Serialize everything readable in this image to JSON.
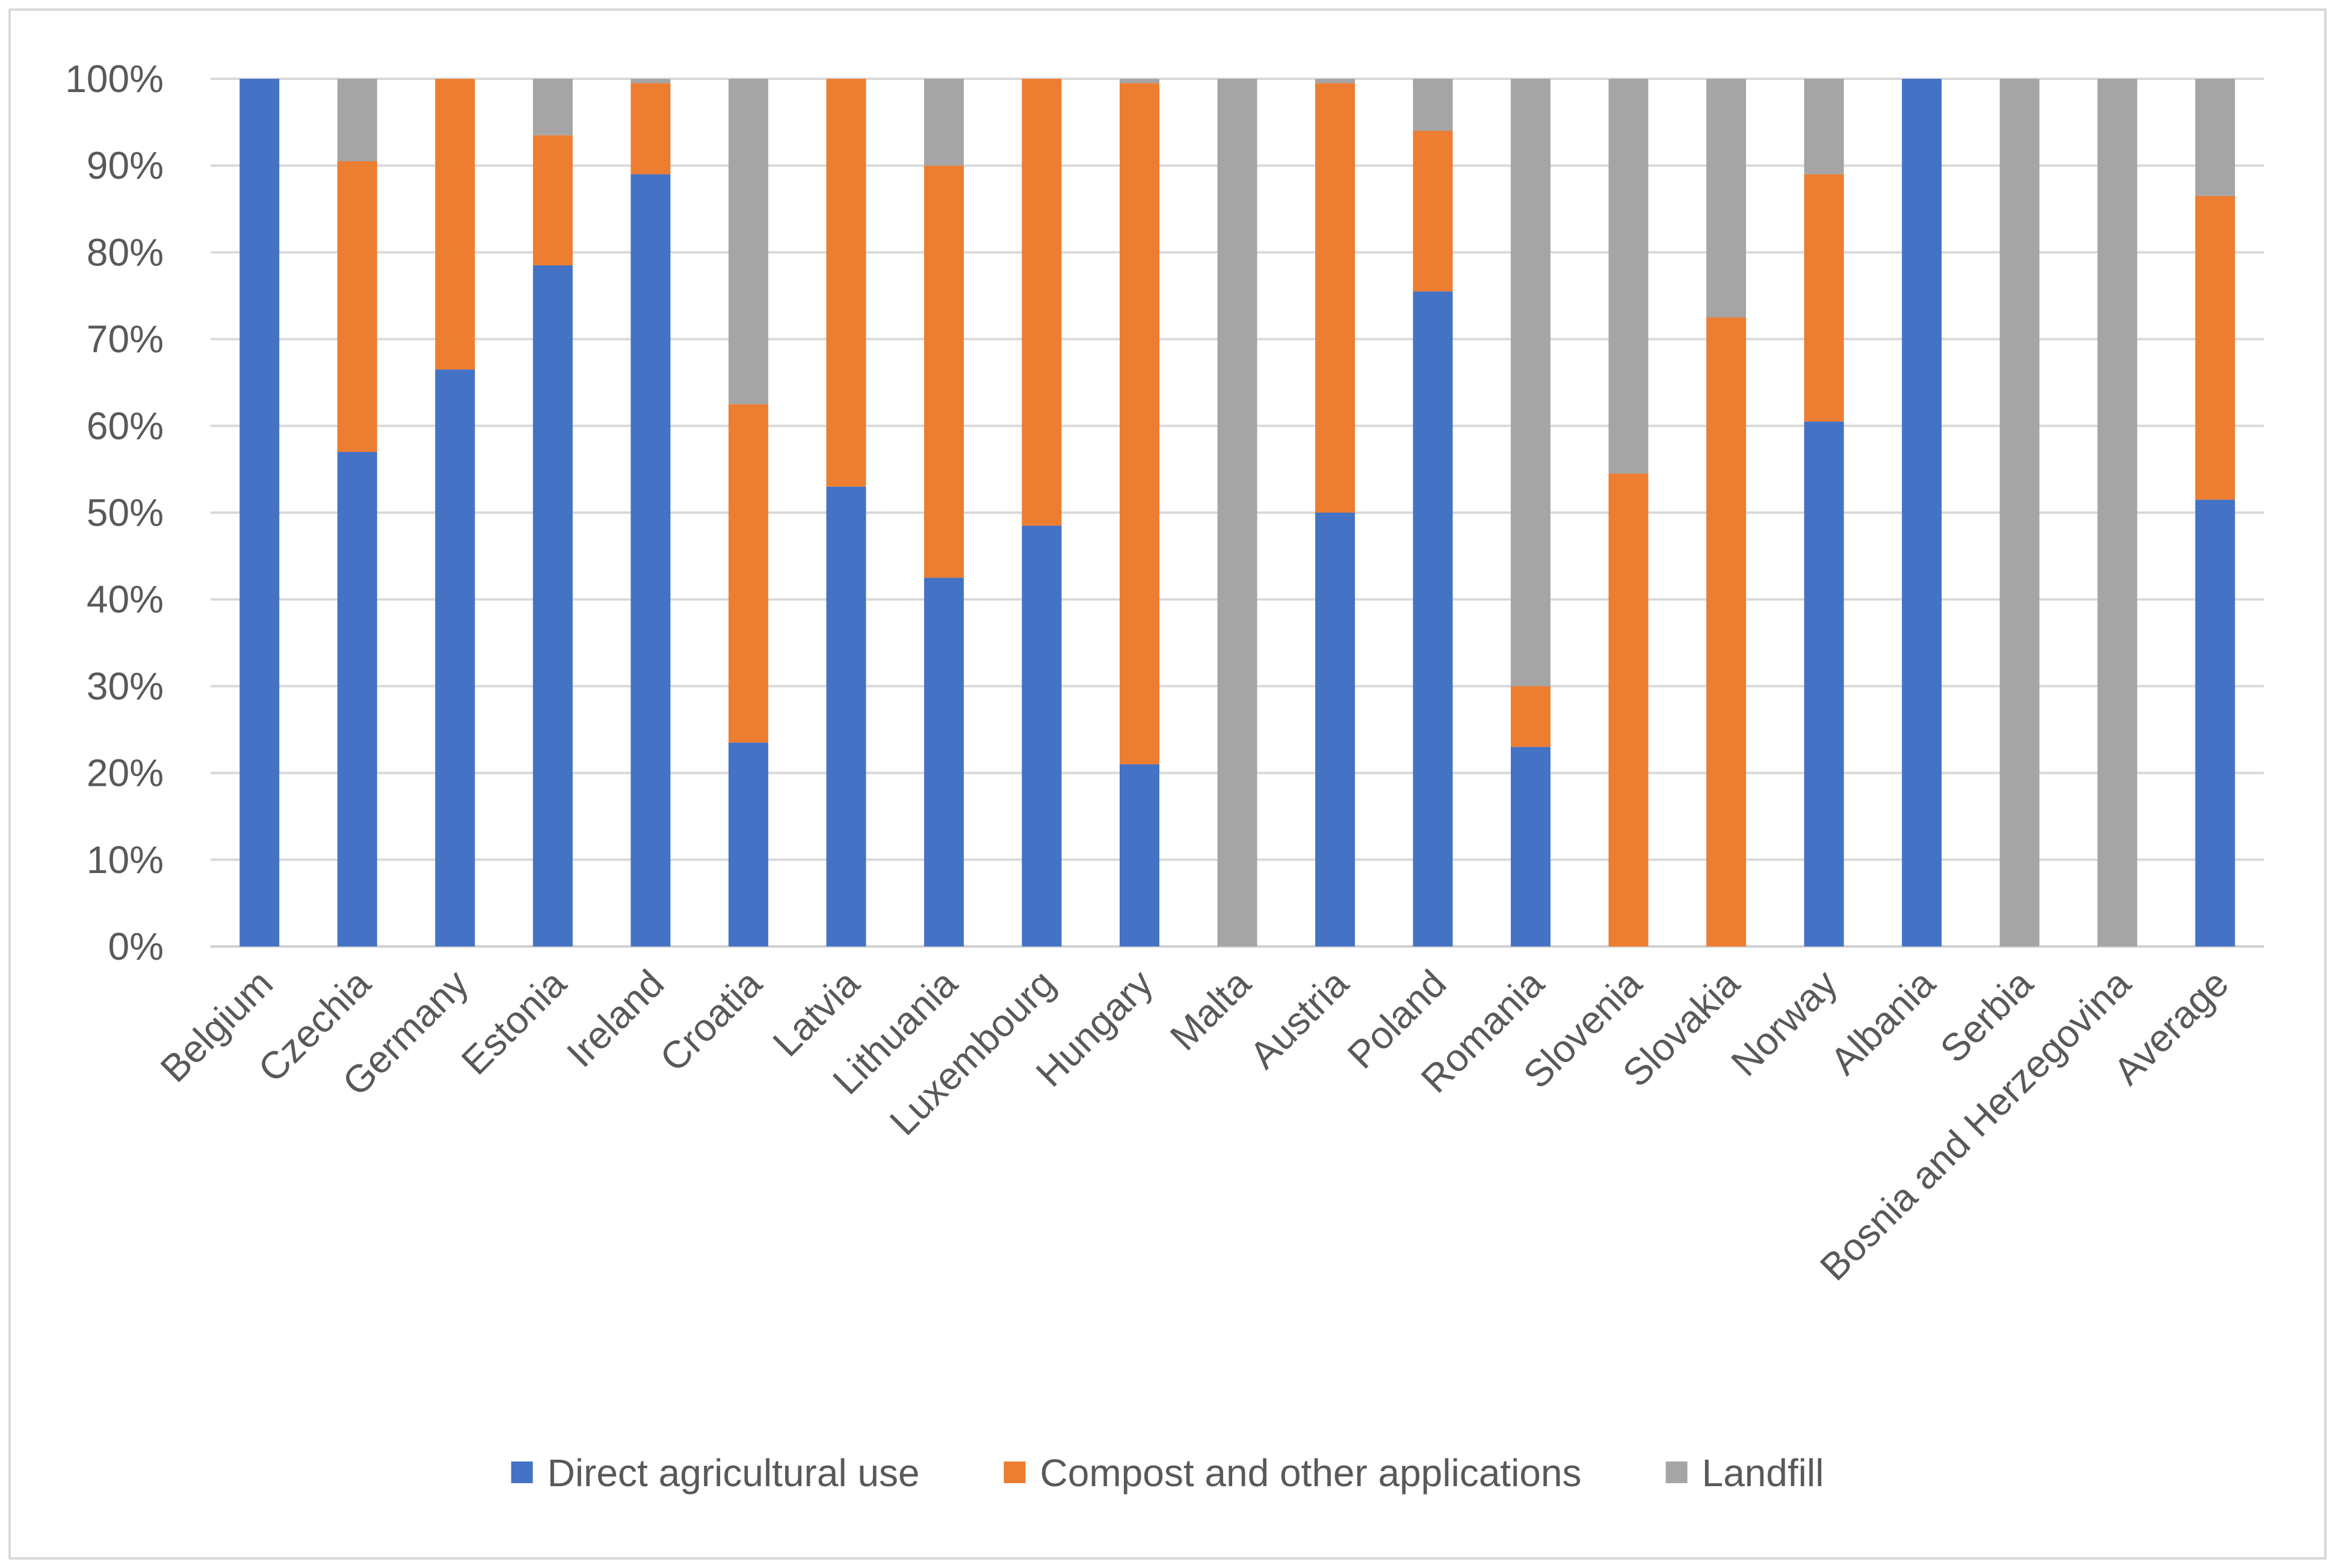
{
  "chart_data": {
    "type": "bar",
    "stacked": true,
    "percent": true,
    "title": "",
    "xlabel": "",
    "ylabel": "",
    "ylim": [
      0,
      100
    ],
    "yticks": [
      "0%",
      "10%",
      "20%",
      "30%",
      "40%",
      "50%",
      "60%",
      "70%",
      "80%",
      "90%",
      "100%"
    ],
    "grid": true,
    "legend_position": "bottom",
    "categories": [
      "Belgium",
      "Czechia",
      "Germany",
      "Estonia",
      "Ireland",
      "Croatia",
      "Latvia",
      "Lithuania",
      "Luxembourg",
      "Hungary",
      "Malta",
      "Austria",
      "Poland",
      "Romania",
      "Slovenia",
      "Slovakia",
      "Norway",
      "Albania",
      "Serbia",
      "Bosnia and Herzegovina",
      "Average"
    ],
    "series": [
      {
        "name": "Direct agricultural use",
        "color": "#4472c4",
        "values": [
          100,
          57,
          66.5,
          78.5,
          89,
          23.5,
          53,
          42.5,
          48.5,
          21,
          0,
          50,
          75.5,
          23,
          0,
          0,
          60.5,
          100,
          0,
          0,
          51.5
        ]
      },
      {
        "name": "Compost and other applications",
        "color": "#ed7d31",
        "values": [
          0,
          33.5,
          33.5,
          15,
          10.5,
          39,
          47,
          47.5,
          51.5,
          78.5,
          0,
          49.5,
          18.5,
          7,
          54.5,
          72.5,
          28.5,
          0,
          0,
          0,
          35
        ]
      },
      {
        "name": "Landfill",
        "color": "#a5a5a5",
        "values": [
          0,
          9.5,
          0,
          6.5,
          0.5,
          37.5,
          0,
          10,
          0,
          0.5,
          100,
          0.5,
          6,
          70,
          45.5,
          27.5,
          11,
          0,
          100,
          100,
          13.5
        ]
      }
    ]
  }
}
